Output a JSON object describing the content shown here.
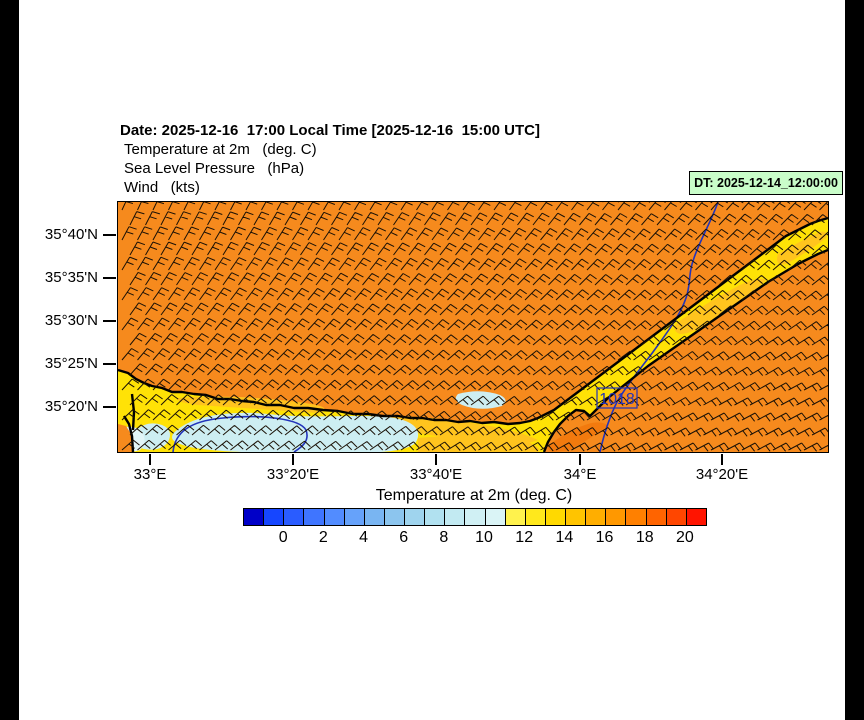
{
  "header": {
    "date_line": "Date: 2025-12-16  17:00 Local Time [2025-12-16  15:00 UTC]",
    "field_line_1": "Temperature at 2m   (deg. C)",
    "field_line_2": "Sea Level Pressure   (hPa)",
    "field_line_3": "Wind   (kts)",
    "dt_badge": "DT: 2025-12-14_12:00:00"
  },
  "map": {
    "lat_labels": [
      "35°40'N",
      "35°35'N",
      "35°30'N",
      "35°25'N",
      "35°20'N"
    ],
    "lon_labels": [
      "33°E",
      "33°20'E",
      "33°40'E",
      "34°E",
      "34°20'E"
    ],
    "pressure_label": "1018",
    "colors": {
      "sea": "#f68a1d",
      "land": "#ffe206",
      "land_gold": "#ffc41e",
      "land_cool": "#cdeef2",
      "land_cool_pale": "#e2f5f7",
      "bay_warm": "#f27a0e",
      "coastline": "#000000",
      "isobar": "#2233bb",
      "barb": "#1b1106"
    }
  },
  "colorbar": {
    "title": "Temperature at 2m  (deg. C)",
    "tick_labels": [
      "0",
      "2",
      "4",
      "6",
      "8",
      "10",
      "12",
      "14",
      "16",
      "18",
      "20"
    ],
    "segment_colors": [
      "#0000c8",
      "#1646ff",
      "#2a5cff",
      "#3f75ff",
      "#528cff",
      "#66a2fa",
      "#79b5f2",
      "#8cc5ee",
      "#9fd4ee",
      "#b1e1f0",
      "#c2eaf2",
      "#d0f0f4",
      "#daf4f6",
      "#fff24d",
      "#ffe81c",
      "#ffd900",
      "#ffc400",
      "#ffae00",
      "#ff9800",
      "#ff8000",
      "#ff6400",
      "#ff4600",
      "#ff1400"
    ]
  }
}
